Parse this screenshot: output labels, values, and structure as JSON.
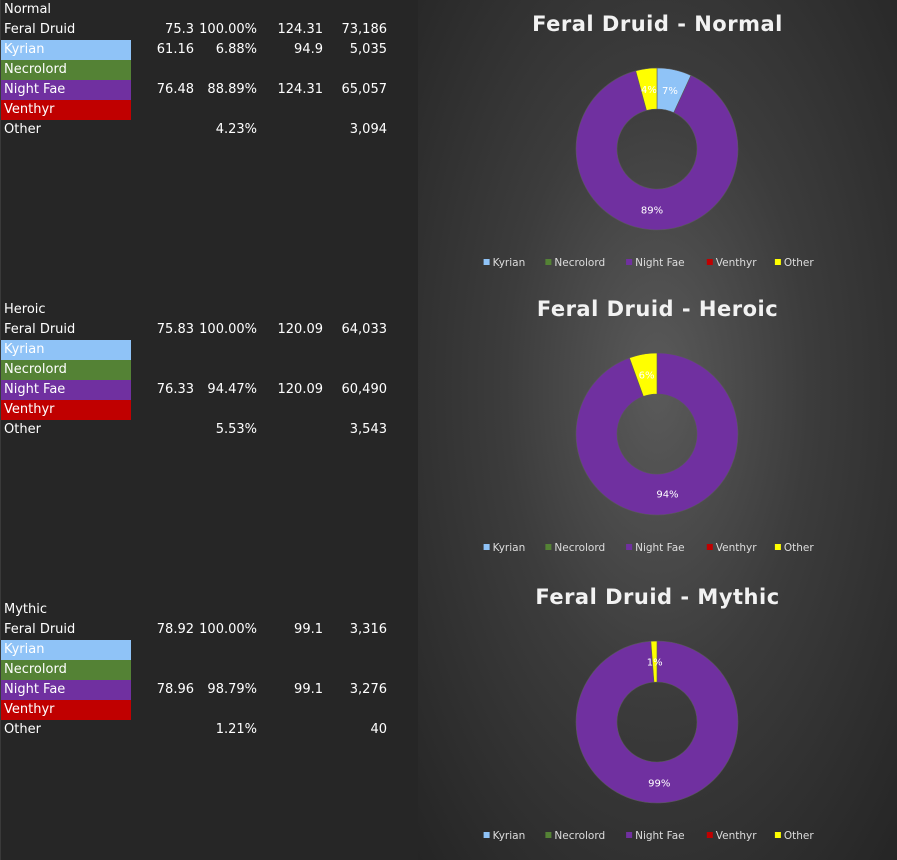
{
  "colors": {
    "Kyrian": "#8fc3f7",
    "Necrolord": "#548235",
    "Night Fae": "#7030a0",
    "Venthyr": "#c00000",
    "Other": "#ffff00"
  },
  "tables": [
    {
      "heading": "Normal",
      "rows": [
        {
          "label": "Feral Druid",
          "c1": "75.3",
          "c2": "100.00%",
          "c3": "124.31",
          "c4": "73,186"
        },
        {
          "label": "Kyrian",
          "c1": "61.16",
          "c2": "6.88%",
          "c3": "94.9",
          "c4": "5,035"
        },
        {
          "label": "Necrolord",
          "c1": "",
          "c2": "",
          "c3": "",
          "c4": ""
        },
        {
          "label": "Night Fae",
          "c1": "76.48",
          "c2": "88.89%",
          "c3": "124.31",
          "c4": "65,057"
        },
        {
          "label": "Venthyr",
          "c1": "",
          "c2": "",
          "c3": "",
          "c4": ""
        },
        {
          "label": "Other",
          "c1": "",
          "c2": "4.23%",
          "c3": "",
          "c4": "3,094"
        }
      ]
    },
    {
      "heading": "Heroic",
      "rows": [
        {
          "label": "Feral Druid",
          "c1": "75.83",
          "c2": "100.00%",
          "c3": "120.09",
          "c4": "64,033"
        },
        {
          "label": "Kyrian",
          "c1": "",
          "c2": "",
          "c3": "",
          "c4": ""
        },
        {
          "label": "Necrolord",
          "c1": "",
          "c2": "",
          "c3": "",
          "c4": ""
        },
        {
          "label": "Night Fae",
          "c1": "76.33",
          "c2": "94.47%",
          "c3": "120.09",
          "c4": "60,490"
        },
        {
          "label": "Venthyr",
          "c1": "",
          "c2": "",
          "c3": "",
          "c4": ""
        },
        {
          "label": "Other",
          "c1": "",
          "c2": "5.53%",
          "c3": "",
          "c4": "3,543"
        }
      ]
    },
    {
      "heading": "Mythic",
      "rows": [
        {
          "label": "Feral Druid",
          "c1": "78.92",
          "c2": "100.00%",
          "c3": "99.1",
          "c4": "3,316"
        },
        {
          "label": "Kyrian",
          "c1": "",
          "c2": "",
          "c3": "",
          "c4": ""
        },
        {
          "label": "Necrolord",
          "c1": "",
          "c2": "",
          "c3": "",
          "c4": ""
        },
        {
          "label": "Night Fae",
          "c1": "78.96",
          "c2": "98.79%",
          "c3": "99.1",
          "c4": "3,276"
        },
        {
          "label": "Venthyr",
          "c1": "",
          "c2": "",
          "c3": "",
          "c4": ""
        },
        {
          "label": "Other",
          "c1": "",
          "c2": "1.21%",
          "c3": "",
          "c4": "40"
        }
      ]
    }
  ],
  "chart_data": [
    {
      "type": "pie",
      "title": "Feral Druid - Normal",
      "categories": [
        "Kyrian",
        "Necrolord",
        "Night Fae",
        "Venthyr",
        "Other"
      ],
      "values": [
        6.88,
        0,
        88.89,
        0,
        4.23
      ],
      "labels": [
        "7%",
        "",
        "89%",
        "",
        "4%"
      ],
      "legend": "bottom"
    },
    {
      "type": "pie",
      "title": "Feral Druid - Heroic",
      "categories": [
        "Kyrian",
        "Necrolord",
        "Night Fae",
        "Venthyr",
        "Other"
      ],
      "values": [
        0,
        0,
        94.47,
        0,
        5.53
      ],
      "labels": [
        "",
        "",
        "94%",
        "",
        "6%"
      ],
      "legend": "bottom"
    },
    {
      "type": "pie",
      "title": "Feral Druid - Mythic",
      "categories": [
        "Kyrian",
        "Necrolord",
        "Night Fae",
        "Venthyr",
        "Other"
      ],
      "values": [
        0,
        0,
        98.79,
        0,
        1.21
      ],
      "labels": [
        "",
        "",
        "99%",
        "",
        "1%"
      ],
      "legend": "bottom"
    }
  ]
}
